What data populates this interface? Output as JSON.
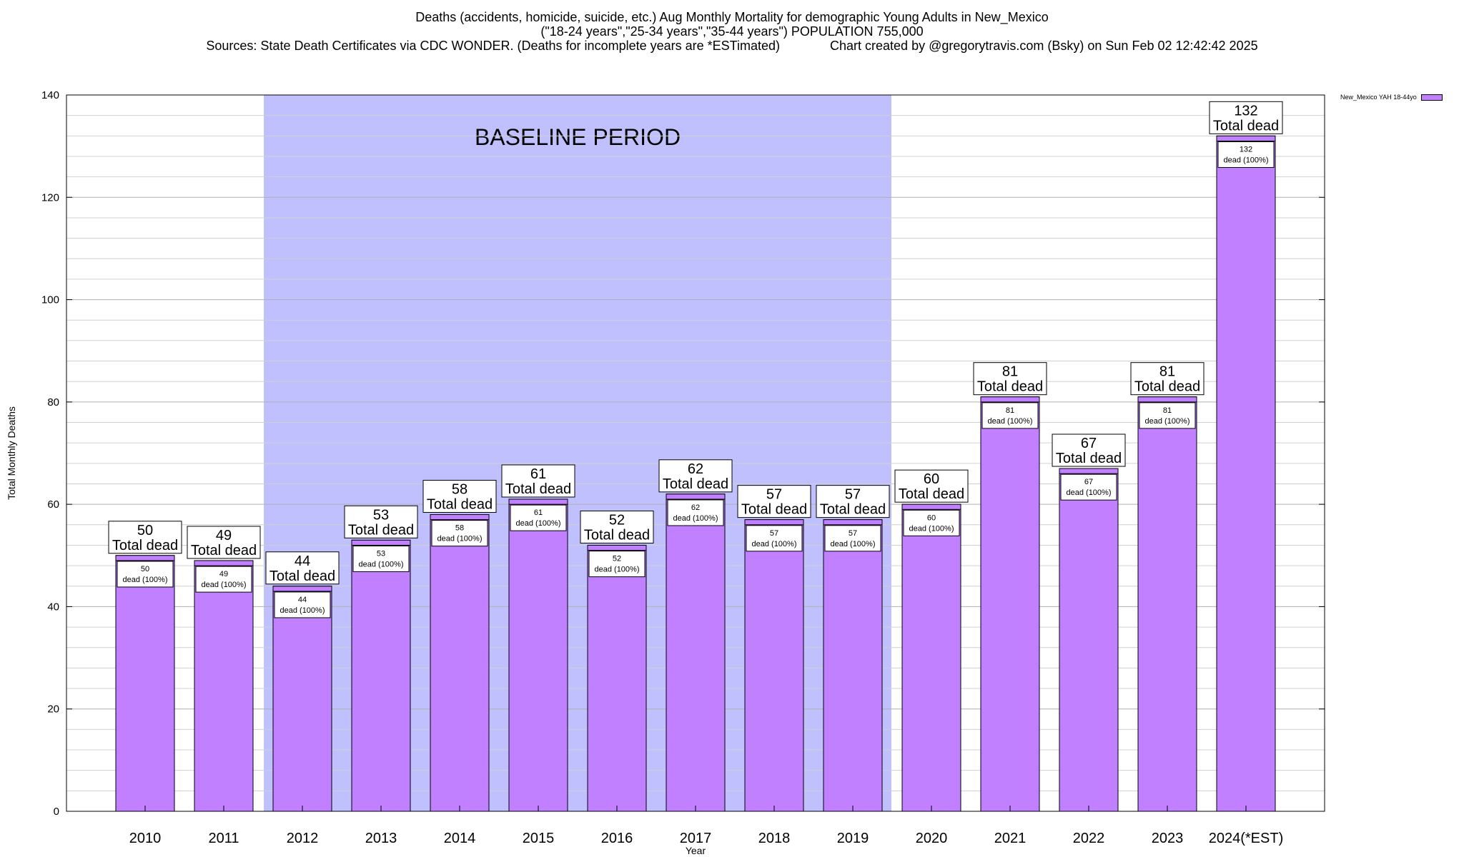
{
  "title": {
    "line1": "Deaths (accidents, homicide, suicide, etc.) Aug Monthly Mortality for demographic Young Adults in New_Mexico",
    "line2": "(\"18-24 years\",\"25-34 years\",\"35-44 years\") POPULATION 755,000",
    "line3_left": "Sources: State Death Certificates via CDC WONDER. (Deaths for incomplete years are *ESTimated)",
    "line3_right": "Chart created by @gregorytravis.com (Bsky) on Sun Feb 02 12:42:42 2025"
  },
  "legend": {
    "label": "New_Mexico YAH 18-44yo"
  },
  "colors": {
    "bar": "#c080ff",
    "baseline": "#c0c0ff"
  },
  "chart_data": {
    "type": "bar",
    "xlabel": "Year",
    "ylabel": "Total Monthly Deaths",
    "ylim": [
      0,
      140
    ],
    "yticks": [
      0,
      20,
      40,
      60,
      80,
      100,
      120,
      140
    ],
    "grid": true,
    "legend_position": "top-right",
    "categories": [
      "2010",
      "2011",
      "2012",
      "2013",
      "2014",
      "2015",
      "2016",
      "2017",
      "2018",
      "2019",
      "2020",
      "2021",
      "2022",
      "2023",
      "2024(*EST)"
    ],
    "series": [
      {
        "name": "New_Mexico YAH 18-44yo",
        "values": [
          50,
          49,
          44,
          53,
          58,
          61,
          52,
          62,
          57,
          57,
          60,
          81,
          67,
          81,
          132
        ]
      }
    ],
    "total_label_suffix": "Total dead",
    "inner_label_suffix": "dead (100%)",
    "baseline_region": {
      "label": "BASELINE PERIOD",
      "from": "2012",
      "to": "2019"
    }
  }
}
